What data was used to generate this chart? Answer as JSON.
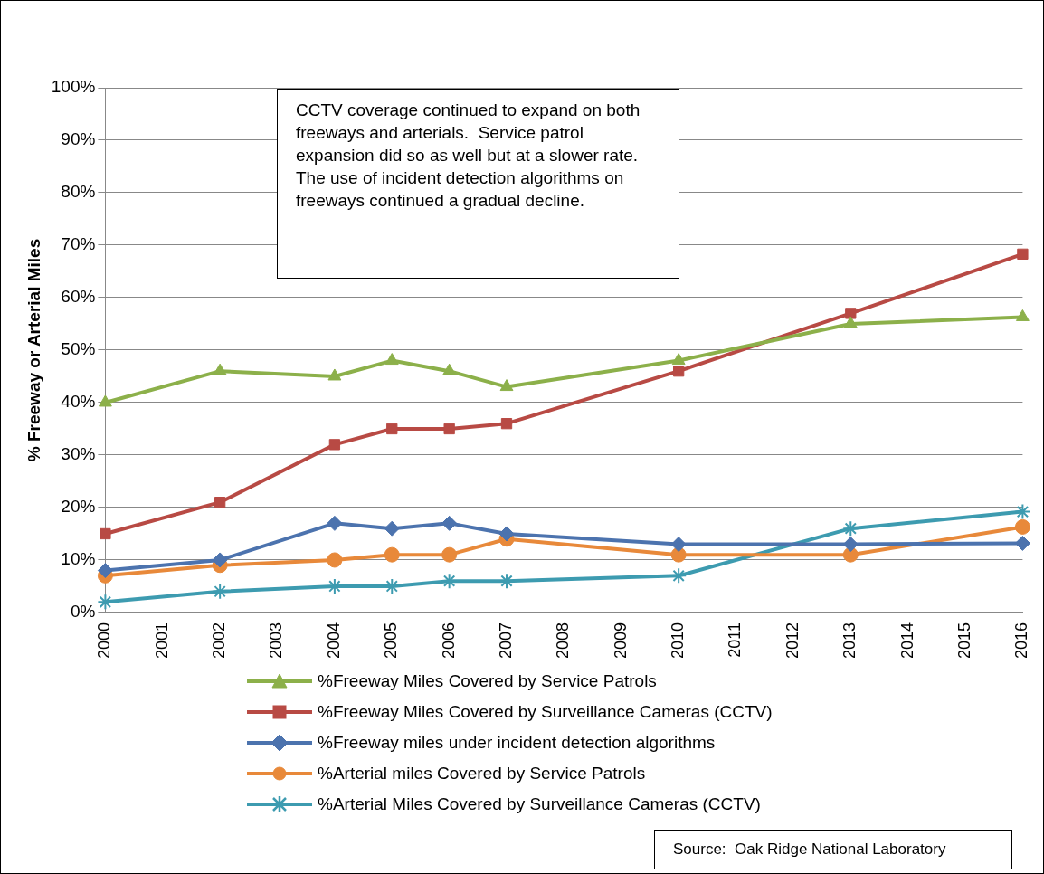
{
  "chart_data": {
    "type": "line",
    "ylabel": "% Freeway or Arterial Miles",
    "categories": [
      "2000",
      "2001",
      "2002",
      "2003",
      "2004",
      "2005",
      "2006",
      "2007",
      "2008",
      "2009",
      "2010",
      "2011",
      "2012",
      "2013",
      "2014",
      "2015",
      "2016"
    ],
    "series": [
      {
        "name": "%Freeway Miles Covered by Service Patrols",
        "color": "#8cb04a",
        "marker": "triangle",
        "values": [
          40,
          null,
          46,
          null,
          45,
          48,
          46,
          43,
          null,
          null,
          48,
          null,
          null,
          55,
          null,
          null,
          56.3
        ]
      },
      {
        "name": "%Freeway Miles Covered by Surveillance Cameras (CCTV)",
        "color": "#b84a44",
        "marker": "square",
        "values": [
          15,
          null,
          21,
          null,
          32,
          35,
          35,
          36,
          null,
          null,
          46,
          null,
          null,
          57,
          null,
          null,
          68.3
        ]
      },
      {
        "name": "%Freeway miles under incident detection algorithms",
        "color": "#4c73ae",
        "marker": "diamond",
        "values": [
          8,
          null,
          10,
          null,
          17,
          16,
          17,
          15,
          null,
          null,
          13,
          null,
          null,
          13,
          null,
          null,
          13.2
        ]
      },
      {
        "name": "%Arterial miles Covered by Service Patrols",
        "color": "#e8893a",
        "marker": "circle",
        "values": [
          7,
          null,
          9,
          null,
          10,
          11,
          11,
          14,
          null,
          null,
          11,
          null,
          null,
          11,
          null,
          null,
          16.3
        ]
      },
      {
        "name": "%Arterial Miles Covered by Surveillance Cameras (CCTV)",
        "color": "#3d9bb0",
        "marker": "cross",
        "values": [
          2,
          null,
          4,
          null,
          5,
          5,
          6,
          6,
          null,
          null,
          7,
          null,
          null,
          16,
          null,
          null,
          19.2
        ]
      }
    ],
    "ylim": [
      0,
      100
    ],
    "yticks": [
      {
        "value": 0,
        "label": "0%"
      },
      {
        "value": 10,
        "label": "10%"
      },
      {
        "value": 20,
        "label": "20%"
      },
      {
        "value": 30,
        "label": "30%"
      },
      {
        "value": 40,
        "label": "40%"
      },
      {
        "value": 50,
        "label": "50%"
      },
      {
        "value": 60,
        "label": "60%"
      },
      {
        "value": 70,
        "label": "70%"
      },
      {
        "value": 80,
        "label": "80%"
      },
      {
        "value": 90,
        "label": "90%"
      },
      {
        "value": 100,
        "label": "100%"
      }
    ],
    "grid": "y",
    "legend": "bottom",
    "line_style": "solid",
    "annotations": [
      "CCTV coverage continued to expand on both freeways and arterials.  Service patrol expansion did so as well but at a slower rate.  The use of incident detection algorithms on freeways continued a gradual decline.",
      "Source:  Oak Ridge National Laboratory"
    ]
  }
}
